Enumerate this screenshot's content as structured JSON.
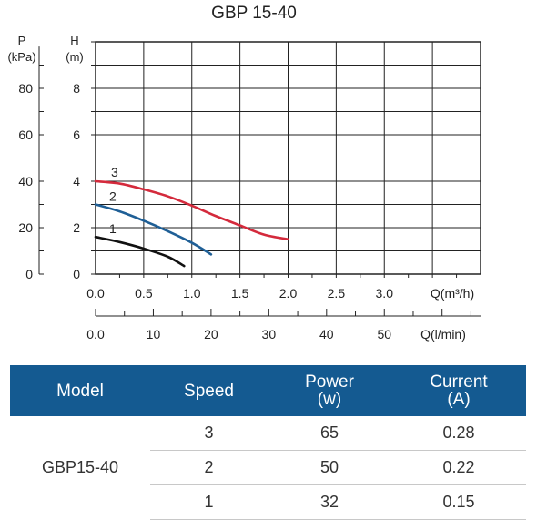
{
  "chart_data": {
    "type": "line",
    "title": "GBP 15-40",
    "y_left_label_top": "P",
    "y_left_label_unit": "(kPa)",
    "y_left_ticks": [
      0,
      20,
      40,
      60,
      80
    ],
    "y_label_top": "H",
    "y_label_unit": "(m)",
    "ylim": [
      0,
      10
    ],
    "y_ticks": [
      0,
      2,
      4,
      6,
      8
    ],
    "xlim": [
      0,
      4
    ],
    "x_ticks": [
      "0.0",
      "0.5",
      "1.0",
      "1.5",
      "2.0",
      "2.5",
      "3.0"
    ],
    "x_tick_values": [
      0,
      0.5,
      1.0,
      1.5,
      2.0,
      2.5,
      3.0
    ],
    "xlabel": "Q(m³/h)",
    "x2_ticks": [
      "0.0",
      "10",
      "20",
      "30",
      "40",
      "50"
    ],
    "x2_tick_values": [
      0,
      10,
      20,
      30,
      40,
      50
    ],
    "x2label": "Q(l/min)",
    "series": [
      {
        "name": "1",
        "color": "#111111",
        "points": [
          [
            0,
            1.6
          ],
          [
            0.25,
            1.38
          ],
          [
            0.5,
            1.1
          ],
          [
            0.75,
            0.75
          ],
          [
            0.92,
            0.35
          ]
        ]
      },
      {
        "name": "2",
        "color": "#1f5f96",
        "points": [
          [
            0,
            3.0
          ],
          [
            0.25,
            2.7
          ],
          [
            0.5,
            2.3
          ],
          [
            0.75,
            1.85
          ],
          [
            1.0,
            1.35
          ],
          [
            1.2,
            0.85
          ]
        ]
      },
      {
        "name": "3",
        "color": "#d42a3c",
        "points": [
          [
            0,
            4.0
          ],
          [
            0.25,
            3.9
          ],
          [
            0.5,
            3.65
          ],
          [
            0.75,
            3.35
          ],
          [
            1.0,
            2.95
          ],
          [
            1.25,
            2.5
          ],
          [
            1.5,
            2.1
          ],
          [
            1.75,
            1.7
          ],
          [
            2.0,
            1.5
          ]
        ]
      }
    ]
  },
  "table": {
    "headers": {
      "model": "Model",
      "speed": "Speed",
      "power_line1": "Power",
      "power_line2": "(w)",
      "current_line1": "Current",
      "current_line2": "(A)"
    },
    "model": "GBP15-40",
    "rows": [
      {
        "speed": "3",
        "power": "65",
        "current": "0.28"
      },
      {
        "speed": "2",
        "power": "50",
        "current": "0.22"
      },
      {
        "speed": "1",
        "power": "32",
        "current": "0.15"
      }
    ]
  }
}
